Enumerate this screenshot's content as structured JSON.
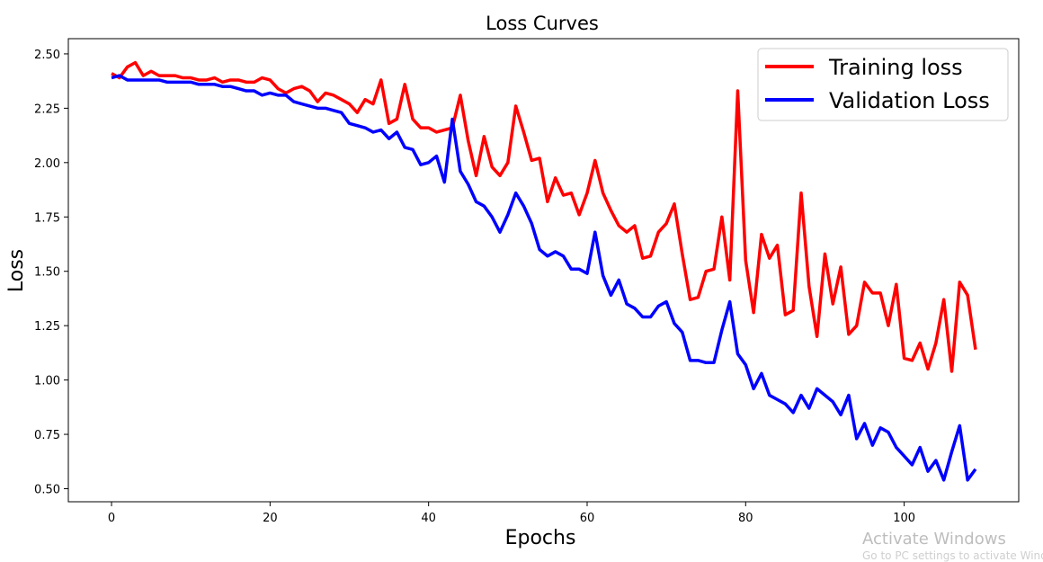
{
  "chart_data": {
    "type": "line",
    "title": "Loss Curves",
    "xlabel": "Epochs",
    "ylabel": "Loss",
    "xlim": [
      -5.45,
      114.45
    ],
    "ylim": [
      0.44,
      2.57
    ],
    "xticks": [
      0,
      20,
      40,
      60,
      80,
      100
    ],
    "yticks": [
      0.5,
      0.75,
      1.0,
      1.25,
      1.5,
      1.75,
      2.0,
      2.25,
      2.5
    ],
    "xtick_labels": [
      "0",
      "20",
      "40",
      "60",
      "80",
      "100"
    ],
    "ytick_labels": [
      "0.50",
      "0.75",
      "1.00",
      "1.25",
      "1.50",
      "1.75",
      "2.00",
      "2.25",
      "2.50"
    ],
    "grid": false,
    "legend_position": "top-right",
    "x": [
      0,
      1,
      2,
      3,
      4,
      5,
      6,
      7,
      8,
      9,
      10,
      11,
      12,
      13,
      14,
      15,
      16,
      17,
      18,
      19,
      20,
      21,
      22,
      23,
      24,
      25,
      26,
      27,
      28,
      29,
      30,
      31,
      32,
      33,
      34,
      35,
      36,
      37,
      38,
      39,
      40,
      41,
      42,
      43,
      44,
      45,
      46,
      47,
      48,
      49,
      50,
      51,
      52,
      53,
      54,
      55,
      56,
      57,
      58,
      59,
      60,
      61,
      62,
      63,
      64,
      65,
      66,
      67,
      68,
      69,
      70,
      71,
      72,
      73,
      74,
      75,
      76,
      77,
      78,
      79,
      80,
      81,
      82,
      83,
      84,
      85,
      86,
      87,
      88,
      89,
      90,
      91,
      92,
      93,
      94,
      95,
      96,
      97,
      98,
      99,
      100,
      101,
      102,
      103,
      104,
      105,
      106,
      107,
      108,
      109
    ],
    "series": [
      {
        "name": "Training loss",
        "color": "#ff0000",
        "values": [
          2.41,
          2.39,
          2.44,
          2.46,
          2.4,
          2.42,
          2.4,
          2.4,
          2.4,
          2.39,
          2.39,
          2.38,
          2.38,
          2.39,
          2.37,
          2.38,
          2.38,
          2.37,
          2.37,
          2.39,
          2.38,
          2.34,
          2.32,
          2.34,
          2.35,
          2.33,
          2.28,
          2.32,
          2.31,
          2.29,
          2.27,
          2.23,
          2.29,
          2.27,
          2.38,
          2.18,
          2.2,
          2.36,
          2.2,
          2.16,
          2.16,
          2.14,
          2.15,
          2.16,
          2.31,
          2.1,
          1.94,
          2.12,
          1.98,
          1.94,
          2.0,
          2.26,
          2.14,
          2.01,
          2.02,
          1.82,
          1.93,
          1.85,
          1.86,
          1.76,
          1.86,
          2.01,
          1.86,
          1.78,
          1.71,
          1.68,
          1.71,
          1.56,
          1.57,
          1.68,
          1.72,
          1.81,
          1.58,
          1.37,
          1.38,
          1.5,
          1.51,
          1.75,
          1.46,
          2.33,
          1.55,
          1.31,
          1.67,
          1.56,
          1.62,
          1.3,
          1.32,
          1.86,
          1.43,
          1.2,
          1.58,
          1.35,
          1.52,
          1.21,
          1.25,
          1.45,
          1.4,
          1.4,
          1.25,
          1.44,
          1.1,
          1.09,
          1.17,
          1.05,
          1.17,
          1.37,
          1.04,
          1.45,
          1.39,
          1.14
        ]
      },
      {
        "name": "Validation Loss",
        "color": "#0000ff",
        "values": [
          2.39,
          2.4,
          2.38,
          2.38,
          2.38,
          2.38,
          2.38,
          2.37,
          2.37,
          2.37,
          2.37,
          2.36,
          2.36,
          2.36,
          2.35,
          2.35,
          2.34,
          2.33,
          2.33,
          2.31,
          2.32,
          2.31,
          2.31,
          2.28,
          2.27,
          2.26,
          2.25,
          2.25,
          2.24,
          2.23,
          2.18,
          2.17,
          2.16,
          2.14,
          2.15,
          2.11,
          2.14,
          2.07,
          2.06,
          1.99,
          2.0,
          2.03,
          1.91,
          2.2,
          1.96,
          1.9,
          1.82,
          1.8,
          1.75,
          1.68,
          1.76,
          1.86,
          1.8,
          1.72,
          1.6,
          1.57,
          1.59,
          1.57,
          1.51,
          1.51,
          1.49,
          1.68,
          1.48,
          1.39,
          1.46,
          1.35,
          1.33,
          1.29,
          1.29,
          1.34,
          1.36,
          1.26,
          1.22,
          1.09,
          1.09,
          1.08,
          1.08,
          1.23,
          1.36,
          1.12,
          1.07,
          0.96,
          1.03,
          0.93,
          0.91,
          0.89,
          0.85,
          0.93,
          0.87,
          0.96,
          0.93,
          0.9,
          0.84,
          0.93,
          0.73,
          0.8,
          0.7,
          0.78,
          0.76,
          0.69,
          0.65,
          0.61,
          0.69,
          0.58,
          0.63,
          0.54,
          0.67,
          0.79,
          0.54,
          0.59
        ]
      }
    ]
  },
  "watermark": {
    "text": "Activate Windows",
    "subtext": "Go to PC settings to activate Windows."
  }
}
